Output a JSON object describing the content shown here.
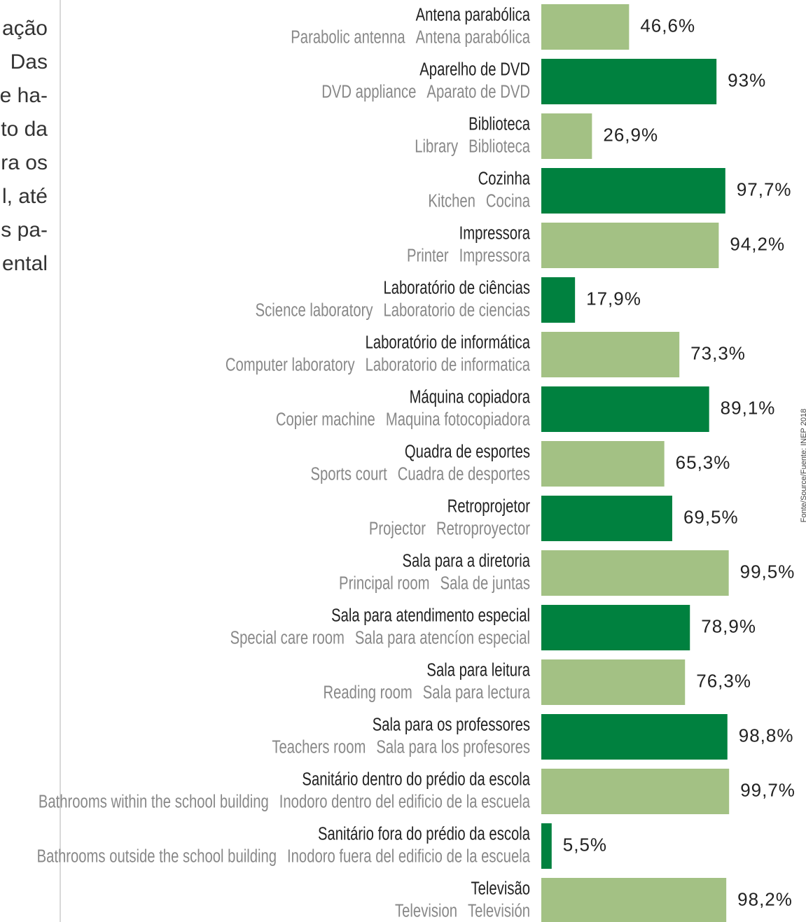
{
  "chart_data": {
    "type": "bar",
    "orientation": "horizontal",
    "categories": [
      "Antena parabólica",
      "Aparelho de DVD",
      "Biblioteca",
      "Cozinha",
      "Impressora",
      "Laboratório de ciências",
      "Laboratório de informática",
      "Máquina copiadora",
      "Quadra de esportes",
      "Retroprojetor",
      "Sala para a diretoria",
      "Sala para atendimento especial",
      "Sala para leitura",
      "Sala para os professores",
      "Sanitário dentro do prédio da escola",
      "Sanitário fora do prédio da escola",
      "Televisão"
    ],
    "categories_en": [
      "Parabolic antenna",
      "DVD appliance",
      "Library",
      "Kitchen",
      "Printer",
      "Science laboratory",
      "Computer laboratory",
      "Copier machine",
      "Sports court",
      "Projector",
      "Principal room",
      "Special care room",
      "Reading room",
      "Teachers room",
      "Bathrooms within the school building",
      "Bathrooms outside the school building",
      "Television"
    ],
    "categories_es": [
      "Antena parabólica",
      "Aparato de DVD",
      "Biblioteca",
      "Cocina",
      "Impressora",
      "Laboratorio de ciencias",
      "Laboratorio de informatica",
      "Maquina fotocopiadora",
      "Cuadra de desportes",
      "Retroproyector",
      "Sala de juntas",
      "Sala para atencíon especial",
      "Sala para lectura",
      "Sala para los profesores",
      "Inodoro dentro del edificio de la escuela",
      "Inodoro fuera del edificio de la escuela",
      "Televisión"
    ],
    "values": [
      46.6,
      93,
      26.9,
      97.7,
      94.2,
      17.9,
      73.3,
      89.1,
      65.3,
      69.5,
      99.5,
      78.9,
      76.3,
      98.8,
      99.7,
      5.5,
      98.2
    ],
    "value_labels": [
      "46,6%",
      "93%",
      "26,9%",
      "97,7%",
      "94,2%",
      "17,9%",
      "73,3%",
      "89,1%",
      "65,3%",
      "69,5%",
      "99,5%",
      "78,9%",
      "76,3%",
      "98,8%",
      "99,7%",
      "5,5%",
      "98,2%"
    ],
    "colors": [
      "#a3c184",
      "#00813f",
      "#a3c184",
      "#00813f",
      "#a3c184",
      "#00813f",
      "#a3c184",
      "#00813f",
      "#a3c184",
      "#00813f",
      "#a3c184",
      "#00813f",
      "#a3c184",
      "#00813f",
      "#a3c184",
      "#00813f",
      "#a3c184"
    ],
    "xlim": [
      0,
      100
    ],
    "source": "Fonte/Source/Fuente: INEP 2018"
  },
  "side_text_lines": [
    "ação",
    "Das",
    "e ha-",
    "to da",
    "ra os",
    "l, até",
    "s pa-",
    "ental"
  ]
}
